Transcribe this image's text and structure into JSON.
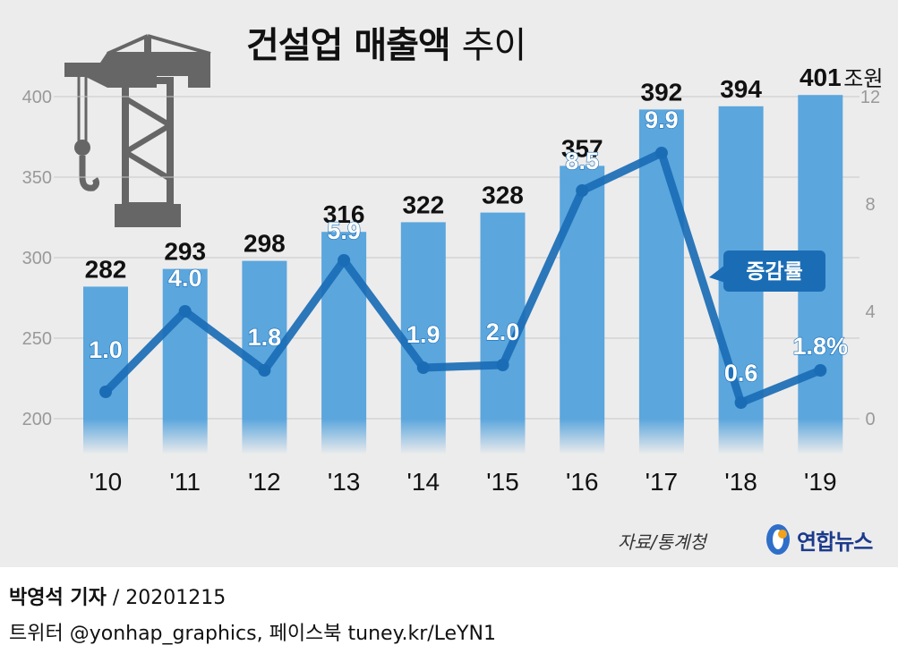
{
  "header": {
    "title_bold": "건설업 매출액",
    "title_light": "추이"
  },
  "chart_data": {
    "type": "bar",
    "categories": [
      "'10",
      "'11",
      "'12",
      "'13",
      "'14",
      "'15",
      "'16",
      "'17",
      "'18",
      "'19"
    ],
    "series": [
      {
        "values": [
          282,
          293,
          298,
          316,
          322,
          328,
          357,
          392,
          394,
          401
        ]
      },
      {
        "name": "증감률",
        "type": "line",
        "axis": "right",
        "values": [
          1.0,
          4.0,
          1.8,
          5.9,
          1.9,
          2.0,
          8.5,
          9.9,
          0.6,
          1.8
        ]
      }
    ],
    "value_labels": [
      "282",
      "293",
      "298",
      "316",
      "322",
      "328",
      "357",
      "392",
      "394",
      "401"
    ],
    "rate_labels": [
      "1.0",
      "4.0",
      "1.8",
      "5.9",
      "1.9",
      "2.0",
      "8.5",
      "9.9",
      "0.6",
      "1.8%"
    ],
    "unit": "조원",
    "y_left": {
      "ylim": [
        200,
        400
      ],
      "ticks": [
        200,
        250,
        300,
        350,
        400
      ]
    },
    "y_right": {
      "ylim": [
        0,
        12
      ],
      "ticks": [
        0,
        4,
        8,
        12
      ]
    },
    "grid": true,
    "legend": "증감률",
    "colors": {
      "bar": "#5ba6dd",
      "line": "#1a6db5",
      "background": "#ececec"
    }
  },
  "footer": {
    "source": "자료/통계청",
    "logo": "연합뉴스",
    "reporter": "박영석 기자",
    "date": "20201215",
    "sns": "트위터 @yonhap_graphics, 페이스북 tuney.kr/LeYN1"
  }
}
